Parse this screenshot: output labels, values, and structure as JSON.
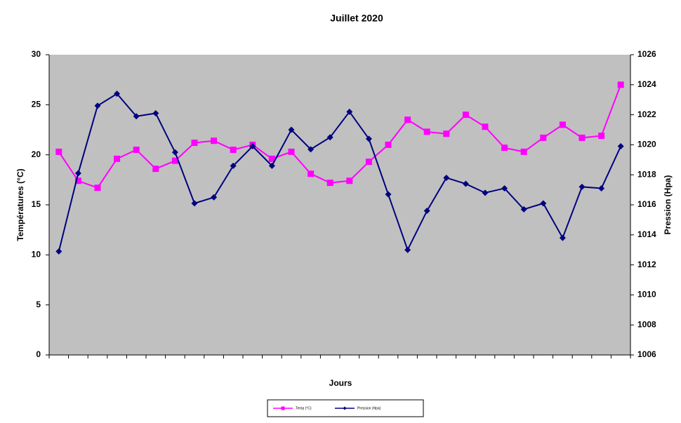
{
  "chart_data": {
    "type": "line",
    "title": "Juillet 2020",
    "x_label": "Jours",
    "y_label": "Températures (°C)",
    "y2_label": "Pression (Hpa)",
    "categories": [
      null,
      null,
      null,
      null,
      null,
      null,
      null,
      null,
      null,
      null,
      null,
      null,
      null,
      null,
      null,
      null,
      null,
      null,
      null,
      null,
      null,
      null,
      null,
      null,
      null,
      null,
      null,
      null,
      null,
      null
    ],
    "ylim": [
      0,
      30
    ],
    "yticks": [
      0,
      5,
      10,
      15,
      20,
      25,
      30
    ],
    "y2lim": [
      1006,
      1026
    ],
    "y2ticks": [
      1006,
      1008,
      1010,
      1012,
      1014,
      1016,
      1018,
      1020,
      1022,
      1024,
      1026
    ],
    "legend": "bottom",
    "plot_background": "#c0c0c0",
    "series": [
      {
        "name": "Temp (°C)",
        "color": "#ff00ff",
        "marker": "square",
        "values": [
          20.3,
          17.4,
          16.7,
          19.6,
          20.5,
          18.6,
          19.4,
          21.2,
          21.4,
          20.5,
          21.0,
          19.6,
          20.3,
          18.1,
          17.2,
          17.4,
          19.3,
          21.0,
          23.5,
          22.3,
          22.1,
          24.0,
          22.8,
          20.7,
          20.3,
          21.7,
          23.0,
          21.7,
          21.9,
          27.0
        ]
      },
      {
        "name": "Pression (Hpa)",
        "color": "#000080",
        "marker": "diamond",
        "axis": "y2",
        "values": [
          1012.9,
          1018.1,
          1022.6,
          1023.4,
          1021.9,
          1022.1,
          1019.5,
          1016.1,
          1016.5,
          1018.6,
          1019.9,
          1018.6,
          1021.0,
          1019.7,
          1020.5,
          1022.2,
          1020.4,
          1016.7,
          1013.0,
          1015.6,
          1017.8,
          1017.4,
          1016.8,
          1017.1,
          1015.7,
          1016.1,
          1013.8,
          1017.2,
          1017.1,
          1019.9
        ]
      }
    ]
  }
}
